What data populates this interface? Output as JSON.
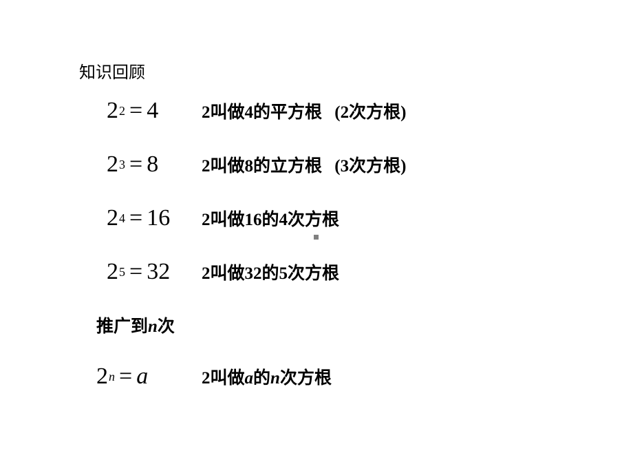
{
  "heading": "知识回顾",
  "rows": [
    {
      "base": "2",
      "exp": "2",
      "rhs": "4",
      "desc_pre": "2叫做4的平方根",
      "paren_num": "2",
      "paren_suffix": "次方根)"
    },
    {
      "base": "2",
      "exp": "3",
      "rhs": "8",
      "desc_pre": "2叫做8的立方根",
      "paren_num": "3",
      "paren_suffix": "次方根)"
    },
    {
      "base": "2",
      "exp": "4",
      "rhs": "16",
      "desc_pre": "2叫做16的",
      "desc_num": "4",
      "desc_suf": "次方根"
    },
    {
      "base": "2",
      "exp": "5",
      "rhs": "32",
      "desc_pre": "2叫做32的",
      "desc_num": "5",
      "desc_suf": "次方根"
    }
  ],
  "subhead_pre": "推广到",
  "subhead_var": "n",
  "subhead_suf": "次",
  "final": {
    "base": "2",
    "exp": "n",
    "rhs": "a",
    "desc_pre": "2叫做",
    "desc_var": "a",
    "desc_mid": "的",
    "desc_var2": "n",
    "desc_suf": "次方根"
  },
  "eqsign": "="
}
